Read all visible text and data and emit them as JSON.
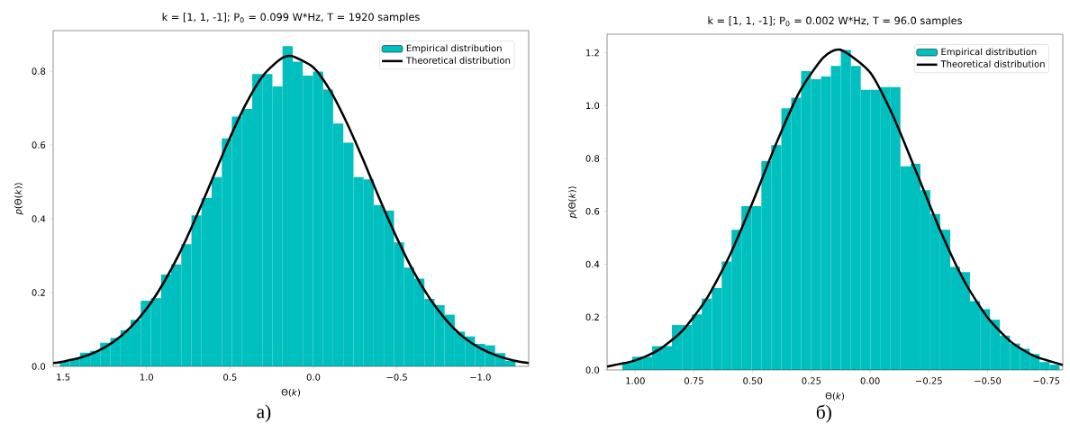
{
  "chart_data": [
    {
      "type": "histogram",
      "title": "k = [1, 1, -1]; P$_{0}$ = 0.099 W*Hz, T = 1920 samples",
      "xlabel": "Θ(*k*)",
      "ylabel": "*p*(Θ(*k*))",
      "xlim": [
        1.56,
        -1.29
      ],
      "ylim": [
        0,
        0.91
      ],
      "xticks": [
        {
          "value": 1.5,
          "label": "1.5"
        },
        {
          "value": 1.0,
          "label": "1.0"
        },
        {
          "value": 0.5,
          "label": "0.5"
        },
        {
          "value": 0.0,
          "label": "0.0"
        },
        {
          "value": -0.5,
          "label": "−0.5"
        },
        {
          "value": -1.0,
          "label": "−1.0"
        }
      ],
      "yticks": [
        {
          "value": 0.0,
          "label": "0.0"
        },
        {
          "value": 0.2,
          "label": "0.2"
        },
        {
          "value": 0.4,
          "label": "0.4"
        },
        {
          "value": 0.6,
          "label": "0.6"
        },
        {
          "value": 0.8,
          "label": "0.8"
        }
      ],
      "legend": "top right",
      "annotations": [
        "a)"
      ],
      "series": [
        {
          "name": "Empirical distribution",
          "color": "#00bfbf",
          "bins": [
            -1.211,
            -1.15,
            -1.089,
            -1.029,
            -0.968,
            -0.908,
            -0.847,
            -0.786,
            -0.725,
            -0.665,
            -0.604,
            -0.543,
            -0.483,
            -0.422,
            -0.361,
            -0.301,
            -0.24,
            -0.179,
            -0.118,
            -0.058,
            0.003,
            0.064,
            0.124,
            0.185,
            0.246,
            0.306,
            0.367,
            0.428,
            0.489,
            0.549,
            0.61,
            0.671,
            0.731,
            0.792,
            0.853,
            0.913,
            0.974,
            1.035,
            1.096,
            1.156,
            1.217,
            1.278,
            1.338,
            1.399,
            1.46,
            1.52
          ],
          "values": [
            0.015,
            0.036,
            0.057,
            0.061,
            0.081,
            0.094,
            0.14,
            0.166,
            0.183,
            0.238,
            0.268,
            0.336,
            0.422,
            0.437,
            0.507,
            0.513,
            0.606,
            0.658,
            0.75,
            0.799,
            0.788,
            0.826,
            0.868,
            0.759,
            0.792,
            0.792,
            0.698,
            0.677,
            0.618,
            0.513,
            0.456,
            0.409,
            0.331,
            0.276,
            0.249,
            0.185,
            0.178,
            0.126,
            0.098,
            0.077,
            0.064,
            0.042,
            0.037,
            0.02,
            0.012
          ]
        },
        {
          "type": "line",
          "name": "Theoretical distribution",
          "color": "#000000",
          "x": [
            -1.29,
            -1.2,
            -1.1,
            -1.0,
            -0.9,
            -0.8,
            -0.7,
            -0.6,
            -0.5,
            -0.4,
            -0.3,
            -0.2,
            -0.1,
            0.0,
            0.13,
            0.2,
            0.3,
            0.4,
            0.5,
            0.6,
            0.7,
            0.8,
            0.9,
            1.0,
            1.1,
            1.2,
            1.3,
            1.4,
            1.5,
            1.56
          ],
          "values": [
            0.009,
            0.016,
            0.029,
            0.049,
            0.079,
            0.123,
            0.182,
            0.257,
            0.348,
            0.45,
            0.558,
            0.66,
            0.748,
            0.81,
            0.841,
            0.832,
            0.789,
            0.715,
            0.62,
            0.514,
            0.408,
            0.309,
            0.225,
            0.156,
            0.104,
            0.066,
            0.04,
            0.023,
            0.013,
            0.009
          ]
        }
      ]
    },
    {
      "type": "histogram",
      "title": "k = [1, 1, -1]; P$_{0}$ = 0.002 W*Hz, T = 96.0 samples",
      "xlabel": "Θ(*k*)",
      "ylabel": "*p*(Θ(*k*))",
      "xlim": [
        1.12,
        -0.82
      ],
      "ylim": [
        0,
        1.27
      ],
      "xticks": [
        {
          "value": 1.0,
          "label": "1.00"
        },
        {
          "value": 0.75,
          "label": "0.75"
        },
        {
          "value": 0.5,
          "label": "0.50"
        },
        {
          "value": 0.25,
          "label": "0.25"
        },
        {
          "value": 0.0,
          "label": "0.00"
        },
        {
          "value": -0.25,
          "label": "−0.25"
        },
        {
          "value": -0.5,
          "label": "−0.50"
        },
        {
          "value": -0.75,
          "label": "−0.75"
        }
      ],
      "yticks": [
        {
          "value": 0.0,
          "label": "0.0"
        },
        {
          "value": 0.2,
          "label": "0.2"
        },
        {
          "value": 0.4,
          "label": "0.4"
        },
        {
          "value": 0.6,
          "label": "0.6"
        },
        {
          "value": 0.8,
          "label": "0.8"
        },
        {
          "value": 1.0,
          "label": "1.0"
        },
        {
          "value": 1.2,
          "label": "1.2"
        }
      ],
      "legend": "top right",
      "annotations": [
        "б)"
      ],
      "series": [
        {
          "name": "Empirical distribution",
          "color": "#00bfbf",
          "bins": [
            -0.806,
            -0.764,
            -0.721,
            -0.679,
            -0.637,
            -0.595,
            -0.552,
            -0.51,
            -0.468,
            -0.425,
            -0.383,
            -0.341,
            -0.298,
            -0.256,
            -0.214,
            -0.172,
            -0.129,
            -0.087,
            -0.045,
            -0.002,
            0.04,
            0.082,
            0.125,
            0.167,
            0.209,
            0.252,
            0.294,
            0.336,
            0.378,
            0.421,
            0.463,
            0.505,
            0.548,
            0.59,
            0.632,
            0.674,
            0.717,
            0.759,
            0.801,
            0.844,
            0.886,
            0.928,
            0.97,
            1.013,
            1.055
          ],
          "values": [
            0.02,
            0.03,
            0.06,
            0.08,
            0.1,
            0.13,
            0.19,
            0.23,
            0.26,
            0.37,
            0.39,
            0.53,
            0.59,
            0.68,
            0.78,
            0.77,
            1.07,
            1.07,
            1.06,
            1.06,
            1.15,
            1.21,
            1.15,
            1.11,
            1.1,
            1.13,
            1.03,
            0.99,
            0.85,
            0.79,
            0.62,
            0.62,
            0.53,
            0.41,
            0.31,
            0.27,
            0.21,
            0.17,
            0.17,
            0.09,
            0.09,
            0.05,
            0.05,
            0.03
          ]
        },
        {
          "type": "line",
          "name": "Theoretical distribution",
          "color": "#000000",
          "x": [
            -0.82,
            -0.7,
            -0.6,
            -0.5,
            -0.4,
            -0.3,
            -0.2,
            -0.1,
            0.0,
            0.126,
            0.2,
            0.3,
            0.4,
            0.5,
            0.6,
            0.7,
            0.8,
            0.9,
            1.0,
            1.12
          ],
          "values": [
            0.019,
            0.052,
            0.106,
            0.198,
            0.337,
            0.524,
            0.741,
            0.956,
            1.125,
            1.211,
            1.181,
            1.053,
            0.856,
            0.635,
            0.429,
            0.264,
            0.148,
            0.076,
            0.036,
            0.013
          ]
        }
      ]
    }
  ]
}
